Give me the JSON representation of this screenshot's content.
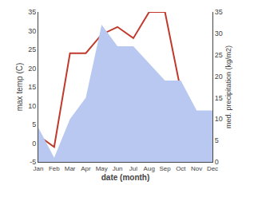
{
  "chart_data": {
    "type": "line",
    "xlabel": "date (month)",
    "ylabel": "max temp (C)",
    "y2label": "med. precipitation (kg/m2)",
    "categories": [
      "Jan",
      "Feb",
      "Mar",
      "Apr",
      "May",
      "Jun",
      "Jul",
      "Aug",
      "Sep",
      "Oct",
      "Nov",
      "Dec"
    ],
    "series": [
      {
        "type": "area",
        "color": "#b8c8f0",
        "axis": "y2",
        "values": [
          8,
          1,
          10,
          15,
          32,
          27,
          27,
          23,
          19,
          19,
          12,
          12
        ]
      },
      {
        "type": "line",
        "color": "#c0392b",
        "values": [
          2,
          -1,
          24,
          24,
          29,
          31,
          28,
          35,
          35,
          14,
          8,
          7
        ]
      }
    ],
    "ylim": [
      -5,
      35
    ],
    "yticks": [
      -5,
      0,
      5,
      10,
      15,
      20,
      25,
      30,
      35
    ],
    "y2lim": [
      0,
      35
    ],
    "y2ticks": [
      0,
      5,
      10,
      15,
      20,
      25,
      30,
      35
    ],
    "grid": false
  }
}
